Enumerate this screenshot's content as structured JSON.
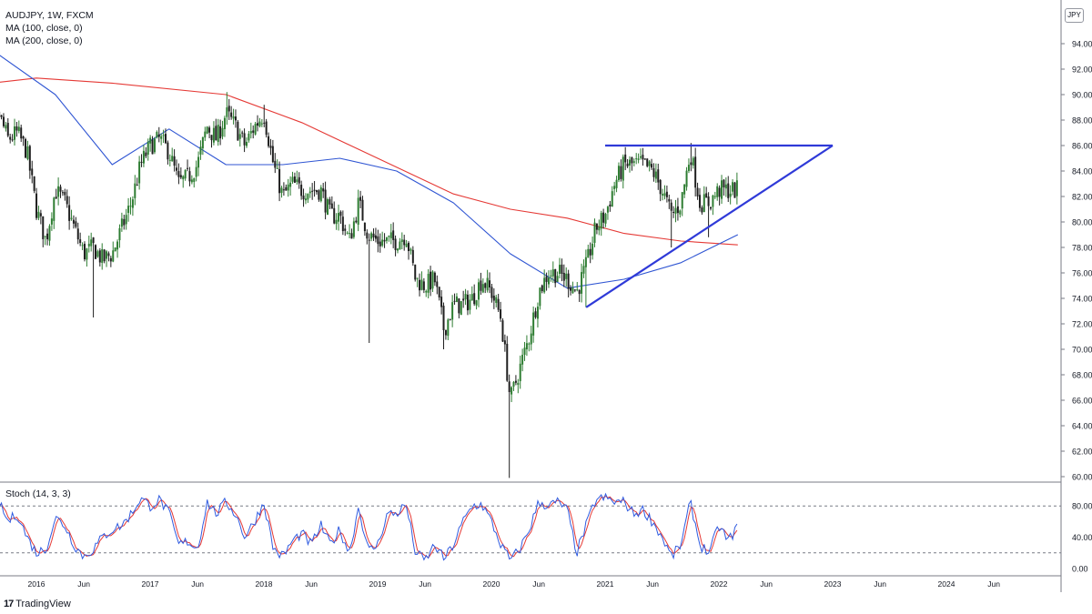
{
  "legend": {
    "symbol": "AUDJPY, 1W, FXCM",
    "ma100": "MA (100, close, 0)",
    "ma200": "MA (200, close, 0)",
    "stoch": "Stoch (14, 3, 3)"
  },
  "currency_badge": "JPY",
  "footer": {
    "logo": "17",
    "brand": "TradingView"
  },
  "colors": {
    "up": "#2e7d32",
    "down": "#1f1f1f",
    "ma100": "#3056d3",
    "ma200": "#e53935",
    "trendline": "#2f3ad8",
    "stoch_k": "#2f5be0",
    "stoch_d": "#e53935",
    "grid": "#c8cbd2",
    "axis_text": "#131722"
  },
  "chart_data": [
    {
      "type": "candlestick",
      "title": "AUDJPY, 1W, FXCM",
      "ylim": [
        60,
        96
      ],
      "y_ticks": [
        "60.000",
        "62.000",
        "64.000",
        "66.000",
        "68.000",
        "70.000",
        "72.000",
        "74.000",
        "76.000",
        "78.000",
        "80.000",
        "82.000",
        "84.000",
        "86.000",
        "88.000",
        "90.000",
        "92.000",
        "94.000"
      ],
      "y_tick_values": [
        60,
        62,
        64,
        66,
        68,
        70,
        72,
        74,
        76,
        78,
        80,
        82,
        84,
        86,
        88,
        90,
        92,
        94
      ],
      "x_ticks": [
        "2016",
        "Jun",
        "2017",
        "Jun",
        "2018",
        "Jun",
        "2019",
        "Jun",
        "2020",
        "Jun",
        "2021",
        "Jun",
        "2022",
        "Jun",
        "2023",
        "Jun",
        "2024",
        "Jun"
      ],
      "x_tick_dates": [
        "2016-01",
        "2016-06",
        "2017-01",
        "2017-06",
        "2018-01",
        "2018-06",
        "2019-01",
        "2019-06",
        "2020-01",
        "2020-06",
        "2021-01",
        "2021-06",
        "2022-01",
        "2022-06",
        "2023-01",
        "2023-06",
        "2024-01",
        "2024-06"
      ],
      "x_range": [
        "2015-07",
        "2024-12"
      ],
      "price_path": [
        [
          "2015-07",
          83.5
        ],
        [
          "2015-08",
          86.5
        ],
        [
          "2015-09",
          88.5
        ],
        [
          "2015-10",
          86.5
        ],
        [
          "2015-11",
          87.0
        ],
        [
          "2015-12",
          85.5
        ],
        [
          "2016-01",
          81.0
        ],
        [
          "2016-02",
          78.5
        ],
        [
          "2016-03",
          82.5
        ],
        [
          "2016-04",
          81.5
        ],
        [
          "2016-05",
          79.5
        ],
        [
          "2016-06",
          77.5
        ],
        [
          "2016-07",
          78.0
        ],
        [
          "2016-08",
          77.0
        ],
        [
          "2016-09",
          77.5
        ],
        [
          "2016-10",
          79.5
        ],
        [
          "2016-11",
          81.5
        ],
        [
          "2016-12",
          84.5
        ],
        [
          "2017-01",
          86.0
        ],
        [
          "2017-02",
          86.5
        ],
        [
          "2017-03",
          85.5
        ],
        [
          "2017-04",
          83.0
        ],
        [
          "2017-05",
          83.5
        ],
        [
          "2017-06",
          84.5
        ],
        [
          "2017-07",
          87.5
        ],
        [
          "2017-08",
          86.5
        ],
        [
          "2017-09",
          88.5
        ],
        [
          "2017-10",
          87.5
        ],
        [
          "2017-11",
          86.0
        ],
        [
          "2017-12",
          87.5
        ],
        [
          "2018-01",
          88.5
        ],
        [
          "2018-02",
          84.5
        ],
        [
          "2018-03",
          82.0
        ],
        [
          "2018-04",
          83.0
        ],
        [
          "2018-05",
          82.5
        ],
        [
          "2018-06",
          82.5
        ],
        [
          "2018-07",
          82.5
        ],
        [
          "2018-08",
          80.5
        ],
        [
          "2018-09",
          80.5
        ],
        [
          "2018-10",
          78.5
        ],
        [
          "2018-11",
          81.5
        ],
        [
          "2018-12",
          79.0
        ],
        [
          "2019-01",
          78.5
        ],
        [
          "2019-02",
          78.5
        ],
        [
          "2019-03",
          78.5
        ],
        [
          "2019-04",
          79.0
        ],
        [
          "2019-05",
          75.5
        ],
        [
          "2019-06",
          75.0
        ],
        [
          "2019-07",
          75.5
        ],
        [
          "2019-08",
          71.5
        ],
        [
          "2019-09",
          73.5
        ],
        [
          "2019-10",
          73.5
        ],
        [
          "2019-11",
          74.0
        ],
        [
          "2019-12",
          75.5
        ],
        [
          "2020-01",
          74.5
        ],
        [
          "2020-02",
          72.5
        ],
        [
          "2020-03",
          66.0
        ],
        [
          "2020-04",
          68.5
        ],
        [
          "2020-05",
          71.0
        ],
        [
          "2020-06",
          74.5
        ],
        [
          "2020-07",
          76.0
        ],
        [
          "2020-08",
          76.0
        ],
        [
          "2020-09",
          75.5
        ],
        [
          "2020-10",
          74.5
        ],
        [
          "2020-11",
          76.5
        ],
        [
          "2020-12",
          79.5
        ],
        [
          "2021-01",
          80.5
        ],
        [
          "2021-02",
          83.0
        ],
        [
          "2021-03",
          84.5
        ],
        [
          "2021-04",
          84.5
        ],
        [
          "2021-05",
          84.5
        ],
        [
          "2021-06",
          84.0
        ],
        [
          "2021-07",
          82.5
        ],
        [
          "2021-08",
          80.5
        ],
        [
          "2021-09",
          81.5
        ],
        [
          "2021-10",
          85.5
        ],
        [
          "2021-11",
          81.5
        ],
        [
          "2021-12",
          81.5
        ],
        [
          "2022-01",
          82.5
        ],
        [
          "2022-02",
          82.5
        ],
        [
          "2022-03",
          82.5
        ]
      ],
      "lows": [
        [
          "2016-07",
          72.5
        ],
        [
          "2018-12",
          70.5
        ],
        [
          "2019-08",
          70.0
        ],
        [
          "2020-03",
          59.9
        ],
        [
          "2020-11",
          73.3
        ],
        [
          "2021-08",
          78.0
        ],
        [
          "2021-12",
          78.8
        ]
      ],
      "highs": [
        [
          "2015-09",
          90.6
        ],
        [
          "2017-09",
          90.2
        ],
        [
          "2018-01",
          89.2
        ],
        [
          "2021-05",
          85.8
        ],
        [
          "2021-10",
          86.2
        ]
      ],
      "series": [
        {
          "name": "MA (100, close, 0)",
          "values": [
            [
              "2015-07",
              94.2
            ],
            [
              "2016-03",
              90.0
            ],
            [
              "2016-09",
              84.5
            ],
            [
              "2017-03",
              87.3
            ],
            [
              "2017-09",
              84.5
            ],
            [
              "2018-03",
              84.5
            ],
            [
              "2018-09",
              85.0
            ],
            [
              "2019-03",
              84.0
            ],
            [
              "2019-09",
              81.5
            ],
            [
              "2020-03",
              77.5
            ],
            [
              "2020-09",
              74.8
            ],
            [
              "2021-03",
              75.5
            ],
            [
              "2021-09",
              76.8
            ],
            [
              "2022-03",
              79.0
            ]
          ]
        },
        {
          "name": "MA (200, close, 0)",
          "values": [
            [
              "2015-07",
              90.8
            ],
            [
              "2016-01",
              91.3
            ],
            [
              "2016-09",
              90.9
            ],
            [
              "2017-09",
              90.0
            ],
            [
              "2018-05",
              87.8
            ],
            [
              "2019-01",
              85.0
            ],
            [
              "2019-09",
              82.2
            ],
            [
              "2020-03",
              81.0
            ],
            [
              "2020-09",
              80.3
            ],
            [
              "2021-03",
              79.1
            ],
            [
              "2021-09",
              78.5
            ],
            [
              "2022-03",
              78.2
            ]
          ]
        }
      ],
      "annotations": [
        {
          "type": "horizontal-resistance",
          "level": 86.0,
          "from": "2021-01",
          "to": "2023-01"
        },
        {
          "type": "ascending-support",
          "from": [
            "2020-11",
            73.3
          ],
          "to": [
            "2023-01",
            86.0
          ]
        }
      ],
      "last_price": 82.2
    },
    {
      "type": "line",
      "title": "Stoch (14, 3, 3)",
      "ylim": [
        0,
        100
      ],
      "y_ticks": [
        "0.00",
        "40.00",
        "80.00"
      ],
      "y_tick_values": [
        0,
        40,
        80
      ],
      "bands": [
        20,
        80
      ],
      "k_path": [
        [
          "2015-07",
          28
        ],
        [
          "2015-08",
          55
        ],
        [
          "2015-09",
          85
        ],
        [
          "2015-10",
          60
        ],
        [
          "2015-11",
          70
        ],
        [
          "2015-12",
          40
        ],
        [
          "2016-01",
          20
        ],
        [
          "2016-02",
          25
        ],
        [
          "2016-03",
          65
        ],
        [
          "2016-04",
          55
        ],
        [
          "2016-05",
          30
        ],
        [
          "2016-06",
          15
        ],
        [
          "2016-07",
          25
        ],
        [
          "2016-08",
          40
        ],
        [
          "2016-09",
          50
        ],
        [
          "2016-10",
          55
        ],
        [
          "2016-11",
          70
        ],
        [
          "2016-12",
          90
        ],
        [
          "2017-01",
          80
        ],
        [
          "2017-02",
          88
        ],
        [
          "2017-03",
          70
        ],
        [
          "2017-04",
          30
        ],
        [
          "2017-05",
          35
        ],
        [
          "2017-06",
          25
        ],
        [
          "2017-07",
          85
        ],
        [
          "2017-08",
          70
        ],
        [
          "2017-09",
          85
        ],
        [
          "2017-10",
          70
        ],
        [
          "2017-11",
          40
        ],
        [
          "2017-12",
          60
        ],
        [
          "2018-01",
          85
        ],
        [
          "2018-02",
          25
        ],
        [
          "2018-03",
          15
        ],
        [
          "2018-04",
          35
        ],
        [
          "2018-05",
          45
        ],
        [
          "2018-06",
          30
        ],
        [
          "2018-07",
          55
        ],
        [
          "2018-08",
          30
        ],
        [
          "2018-09",
          50
        ],
        [
          "2018-10",
          20
        ],
        [
          "2018-11",
          80
        ],
        [
          "2018-12",
          22
        ],
        [
          "2019-01",
          30
        ],
        [
          "2019-02",
          70
        ],
        [
          "2019-03",
          70
        ],
        [
          "2019-04",
          82
        ],
        [
          "2019-05",
          20
        ],
        [
          "2019-06",
          10
        ],
        [
          "2019-07",
          30
        ],
        [
          "2019-08",
          12
        ],
        [
          "2019-09",
          30
        ],
        [
          "2019-10",
          60
        ],
        [
          "2019-11",
          80
        ],
        [
          "2019-12",
          82
        ],
        [
          "2020-01",
          60
        ],
        [
          "2020-02",
          30
        ],
        [
          "2020-03",
          10
        ],
        [
          "2020-04",
          25
        ],
        [
          "2020-05",
          50
        ],
        [
          "2020-06",
          85
        ],
        [
          "2020-07",
          80
        ],
        [
          "2020-08",
          85
        ],
        [
          "2020-09",
          75
        ],
        [
          "2020-10",
          20
        ],
        [
          "2020-11",
          55
        ],
        [
          "2020-12",
          88
        ],
        [
          "2021-01",
          90
        ],
        [
          "2021-02",
          85
        ],
        [
          "2021-03",
          85
        ],
        [
          "2021-04",
          70
        ],
        [
          "2021-05",
          75
        ],
        [
          "2021-06",
          60
        ],
        [
          "2021-07",
          40
        ],
        [
          "2021-08",
          15
        ],
        [
          "2021-09",
          30
        ],
        [
          "2021-10",
          85
        ],
        [
          "2021-11",
          30
        ],
        [
          "2021-12",
          20
        ],
        [
          "2022-01",
          55
        ],
        [
          "2022-02",
          35
        ],
        [
          "2022-03",
          55
        ]
      ]
    }
  ]
}
